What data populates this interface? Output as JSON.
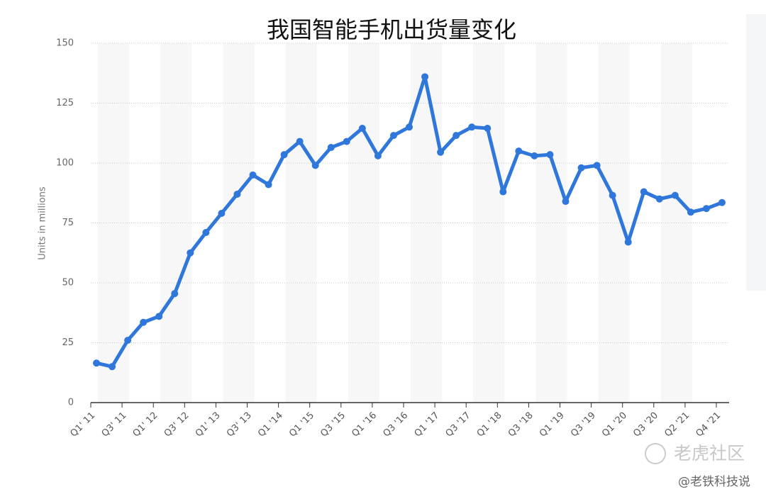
{
  "chart_data": {
    "type": "line",
    "title": "我国智能手机出货量变化",
    "y_label": "Units in millions",
    "categories": [
      "Q1' 11",
      null,
      "Q3' 11",
      null,
      "Q1' 12",
      null,
      "Q3' 12",
      null,
      "Q1' 13",
      null,
      "Q3' 13",
      null,
      "Q1 '14",
      null,
      "Q1 '15",
      null,
      "Q3 '15",
      null,
      "Q1 '16",
      null,
      "Q3 '16",
      null,
      "Q1 '17",
      null,
      "Q3 '17",
      null,
      "Q1 '18",
      null,
      "Q3 '18",
      null,
      "Q1 '19",
      null,
      "Q3 '19",
      null,
      "Q1 '20",
      null,
      "Q3 '20",
      null,
      "Q2 '21",
      null,
      "Q4 '21"
    ],
    "values": [
      16.5,
      15,
      26,
      33.5,
      36,
      45.5,
      62.5,
      71,
      79,
      87,
      95,
      91,
      103.5,
      109,
      99,
      106.5,
      109,
      114.5,
      103,
      111.5,
      115,
      136,
      104.5,
      111.5,
      115,
      114.5,
      88,
      105,
      103,
      103.5,
      84,
      98,
      99,
      86.5,
      67,
      88,
      85,
      86.5,
      79.5,
      81,
      83.5
    ],
    "color": "#2f77db",
    "ylim": [
      0,
      150
    ],
    "yticks": [
      0,
      25,
      50,
      75,
      100,
      125,
      150
    ],
    "grid": true
  },
  "watermark": {
    "community": "老虎社区",
    "author": "@老铁科技说"
  }
}
